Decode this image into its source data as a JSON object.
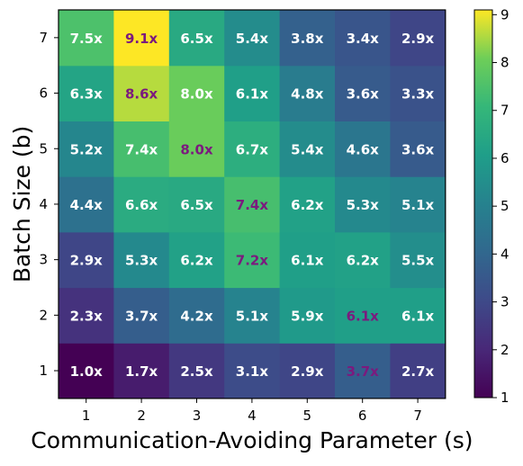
{
  "chart_data": {
    "type": "heatmap",
    "xlabel": "Communication-Avoiding Parameter (s)",
    "ylabel": "Batch Size (b)",
    "x": [
      "1",
      "2",
      "3",
      "4",
      "5",
      "6",
      "7"
    ],
    "y": [
      "1",
      "2",
      "3",
      "4",
      "5",
      "6",
      "7"
    ],
    "values": [
      [
        1.0,
        1.7,
        2.5,
        3.1,
        2.9,
        3.7,
        2.7
      ],
      [
        2.3,
        3.7,
        4.2,
        5.1,
        5.9,
        6.1,
        6.1
      ],
      [
        2.9,
        5.3,
        6.2,
        7.2,
        6.1,
        6.2,
        5.5
      ],
      [
        4.4,
        6.6,
        6.5,
        7.4,
        6.2,
        5.3,
        5.1
      ],
      [
        5.2,
        7.4,
        8.0,
        6.7,
        5.4,
        4.6,
        3.6
      ],
      [
        6.3,
        8.6,
        8.0,
        6.1,
        4.8,
        3.6,
        3.3
      ],
      [
        7.5,
        9.1,
        6.5,
        5.4,
        3.8,
        3.4,
        2.9
      ]
    ],
    "cell_labels": [
      [
        "1.0x",
        "1.7x",
        "2.5x",
        "3.1x",
        "2.9x",
        "3.7x",
        "2.7x"
      ],
      [
        "2.3x",
        "3.7x",
        "4.2x",
        "5.1x",
        "5.9x",
        "6.1x",
        "6.1x"
      ],
      [
        "2.9x",
        "5.3x",
        "6.2x",
        "7.2x",
        "6.1x",
        "6.2x",
        "5.5x"
      ],
      [
        "4.4x",
        "6.6x",
        "6.5x",
        "7.4x",
        "6.2x",
        "5.3x",
        "5.1x"
      ],
      [
        "5.2x",
        "7.4x",
        "8.0x",
        "6.7x",
        "5.4x",
        "4.6x",
        "3.6x"
      ],
      [
        "6.3x",
        "8.6x",
        "8.0x",
        "6.1x",
        "4.8x",
        "3.6x",
        "3.3x"
      ],
      [
        "7.5x",
        "9.1x",
        "6.5x",
        "5.4x",
        "3.8x",
        "3.4x",
        "2.9x"
      ]
    ],
    "highlighted_cells": [
      [
        0,
        5
      ],
      [
        1,
        5
      ],
      [
        2,
        3
      ],
      [
        3,
        3
      ],
      [
        4,
        2
      ],
      [
        5,
        1
      ],
      [
        6,
        1
      ]
    ],
    "highlight_color": "#7b1a7e",
    "label_color": "#ffffff",
    "colormap": "viridis",
    "colorbar": {
      "min": 1,
      "max": 9.1,
      "ticks": [
        "1",
        "2",
        "3",
        "4",
        "5",
        "6",
        "7",
        "8",
        "9"
      ]
    }
  }
}
